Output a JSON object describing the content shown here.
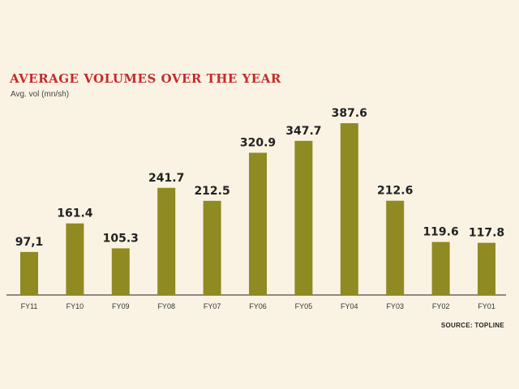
{
  "chart_data": {
    "type": "bar",
    "title": "AVERAGE VOLUMES OVER THE YEAR",
    "ylabel": "Avg. vol (mn/sh)",
    "categories": [
      "FY11",
      "FY10",
      "FY09",
      "FY08",
      "FY07",
      "FY06",
      "FY05",
      "FY04",
      "FY03",
      "FY02",
      "FY01"
    ],
    "values": [
      97.1,
      161.4,
      105.3,
      241.7,
      212.5,
      320.9,
      347.7,
      387.6,
      212.6,
      119.6,
      117.8
    ],
    "data_labels": [
      "97,1",
      "161.4",
      "105.3",
      "241.7",
      "212.5",
      "320.9",
      "347.7",
      "387.6",
      "212.6",
      "119.6",
      "117.8"
    ],
    "ylim": [
      0,
      387.6
    ],
    "grid": false,
    "legend": "none",
    "source": "SOURCE: TOPLINE",
    "colors": {
      "bar": "#8f8a22",
      "title": "#c62a2a",
      "background": "#faf3e3",
      "axis": "#222222"
    }
  }
}
